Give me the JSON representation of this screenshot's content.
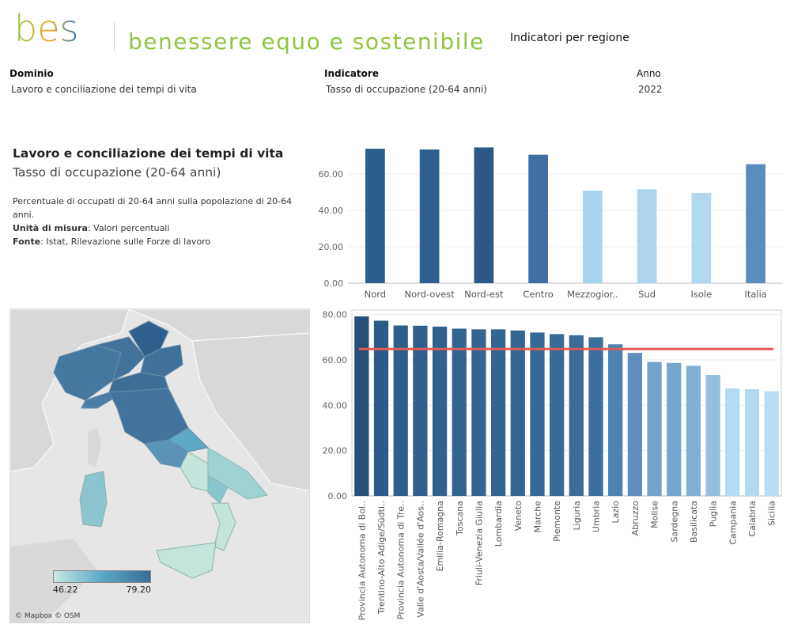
{
  "header": {
    "logo_text": "bes",
    "tagline": "benessere equo e sostenibile",
    "page_heading": "Indicatori per regione"
  },
  "filters": {
    "dominio": {
      "label": "Dominio",
      "value": "Lavoro e conciliazione dei tempi di vita"
    },
    "indicatore": {
      "label": "Indicatore",
      "value": "Tasso di occupazione (20-64 anni)"
    },
    "anno": {
      "label": "Anno",
      "value": "2022"
    }
  },
  "info": {
    "domain_title": "Lavoro e conciliazione dei tempi di vita",
    "indicator_title": "Tasso di occupazione (20-64 anni)",
    "description": "Percentuale di occupati di 20-64 anni sulla popolazione di 20-64 anni.",
    "unit_label": "Unità di misura",
    "unit_value": ": Valori percentuali",
    "source_label": "Fonte",
    "source_value": ": Istat, Rilevazione sulle Forze di lavoro"
  },
  "map": {
    "legend_min": "46.22",
    "legend_max": "79.20",
    "attribution": "© Mapbox © OSM",
    "colors": {
      "low": "#c8e6e0",
      "mid": "#5aa9c7",
      "high": "#3a6d94",
      "land": "#d6d6d6",
      "sea": "#e6e6e6"
    }
  },
  "chart_data": [
    {
      "type": "bar",
      "categories": [
        "Nord",
        "Nord-ovest",
        "Nord-est",
        "Centro",
        "Mezzogior..",
        "Sud",
        "Isole",
        "Italia"
      ],
      "values": [
        73.9,
        73.5,
        74.6,
        70.6,
        50.9,
        51.6,
        49.6,
        65.4
      ],
      "colors": [
        "#2d5f8e",
        "#2e5f8e",
        "#2c5887",
        "#3d6fa3",
        "#a9d4ef",
        "#acd4ef",
        "#b1d8f0",
        "#5b8cbf"
      ],
      "yticks": [
        "0.00",
        "20.00",
        "40.00",
        "60.00"
      ],
      "ylim": [
        0,
        80
      ]
    },
    {
      "type": "bar",
      "categories": [
        "Provincia Autonoma di Bol..",
        "Trentino-Alto Adige/Südti..",
        "Provincia Autonoma di Tre..",
        "Valle d'Aosta/Vallée d'Aos..",
        "Emilia-Romagna",
        "Toscana",
        "Friuli-Venezia Giulia",
        "Lombardia",
        "Veneto",
        "Marche",
        "Piemonte",
        "Liguria",
        "Umbria",
        "Lazio",
        "Abruzzo",
        "Molise",
        "Sardegna",
        "Basilicata",
        "Puglia",
        "Campania",
        "Calabria",
        "Sicilia"
      ],
      "values": [
        79.2,
        77.3,
        75.2,
        75.1,
        74.7,
        73.8,
        73.5,
        73.5,
        73.0,
        72.1,
        71.4,
        70.9,
        70.0,
        66.9,
        63.1,
        59.1,
        58.7,
        57.4,
        53.4,
        47.4,
        47.1,
        46.2
      ],
      "colors": [
        "#264f7a",
        "#2d5a87",
        "#2f5f8d",
        "#2f5f8d",
        "#30608e",
        "#326492",
        "#336593",
        "#336593",
        "#346694",
        "#366996",
        "#386b98",
        "#396c99",
        "#3b6f9c",
        "#4e82b4",
        "#5c8fc0",
        "#73a3cd",
        "#76a6cf",
        "#80aed4",
        "#93bfe0",
        "#b4daf0",
        "#b6dbf1",
        "#b9ddf1"
      ],
      "reference_line": 64.8,
      "reference_color": "#e05a55",
      "yticks": [
        "0.00",
        "20.00",
        "40.00",
        "60.00",
        "80.00"
      ],
      "ylim": [
        0,
        82
      ]
    }
  ]
}
